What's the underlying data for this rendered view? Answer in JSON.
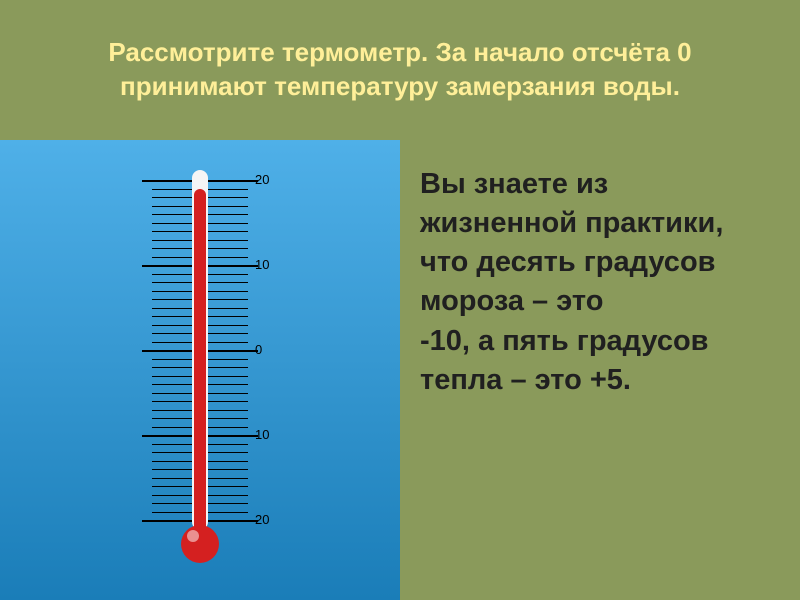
{
  "slide": {
    "background_color": "#8a9a5b",
    "header": {
      "background_color": "#8a9a5b",
      "text_color": "#ffef99",
      "line1": "Рассмотрите термометр. За начало отсчёта 0",
      "line2": "принимают температуру замерзания воды.",
      "fontsize": 26
    },
    "left": {
      "background_color_top": "#4fb0e8",
      "background_color_bottom": "#1a7db8",
      "thermometer": {
        "tube_color": "#f5f5f5",
        "mercury_color": "#d42020",
        "bulb_color": "#d42020",
        "tick_color": "#000000",
        "label_color": "#000000",
        "scale_min": -20,
        "scale_max": 20,
        "major_step": 10,
        "minor_step": 1,
        "label_step": 10,
        "reading": 19,
        "tick_major_length": 50,
        "tick_minor_length": 40,
        "labels": [
          {
            "value": 20,
            "text": "20"
          },
          {
            "value": 10,
            "text": "10"
          },
          {
            "value": 0,
            "text": "0"
          },
          {
            "value": -10,
            "text": "10"
          },
          {
            "value": -20,
            "text": "20"
          }
        ]
      }
    },
    "right": {
      "background_color": "#8a9a5b",
      "text_color": "#202020",
      "text": "Вы знаете из жизненной практики, что десять градусов мороза – это\n -10, а пять градусов тепла – это +5.",
      "fontsize": 29
    }
  }
}
